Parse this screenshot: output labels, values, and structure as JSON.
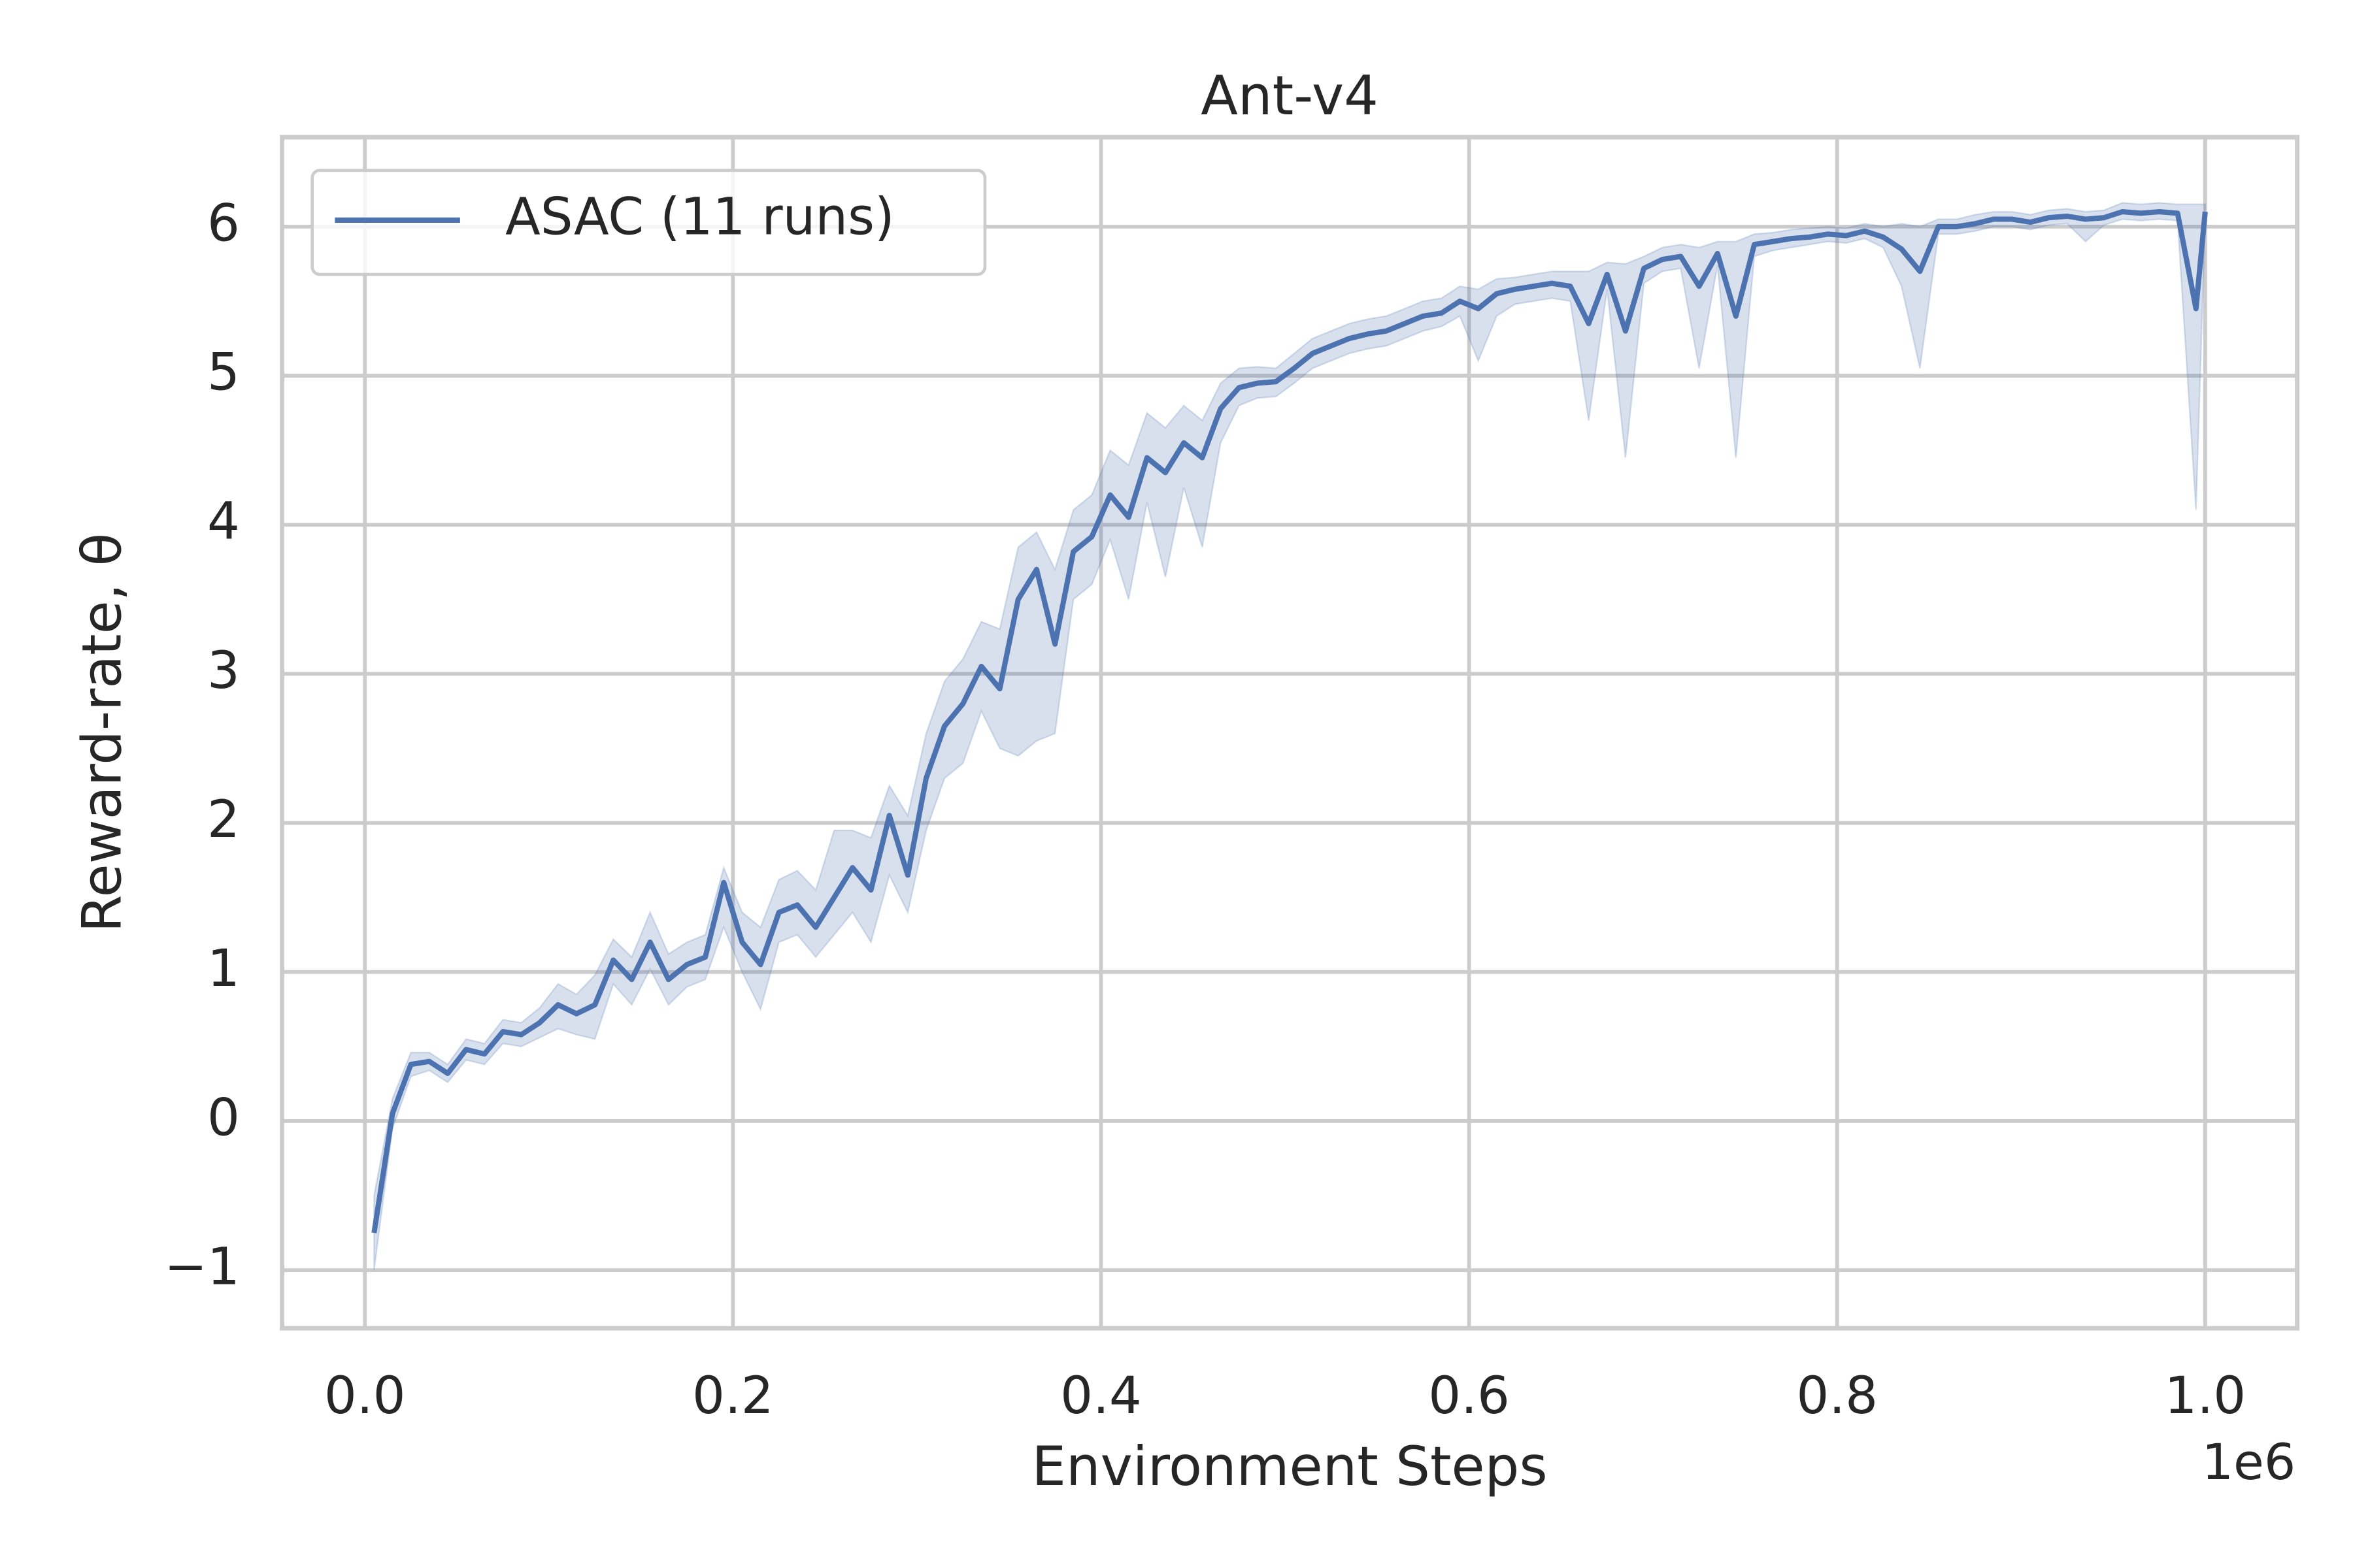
{
  "chart_data": {
    "type": "line",
    "title": "Ant-v4",
    "xlabel": "Environment Steps",
    "ylabel": "Reward-rate, θ",
    "x_offset_label": "1e6",
    "x": [
      0.005,
      0.015,
      0.025,
      0.035,
      0.045,
      0.055,
      0.065,
      0.075,
      0.085,
      0.095,
      0.105,
      0.115,
      0.125,
      0.135,
      0.145,
      0.155,
      0.165,
      0.175,
      0.185,
      0.195,
      0.205,
      0.215,
      0.225,
      0.235,
      0.245,
      0.255,
      0.265,
      0.275,
      0.285,
      0.295,
      0.305,
      0.315,
      0.325,
      0.335,
      0.345,
      0.355,
      0.365,
      0.375,
      0.385,
      0.395,
      0.405,
      0.415,
      0.425,
      0.435,
      0.445,
      0.455,
      0.465,
      0.475,
      0.485,
      0.495,
      0.505,
      0.515,
      0.525,
      0.535,
      0.545,
      0.555,
      0.565,
      0.575,
      0.585,
      0.595,
      0.605,
      0.615,
      0.625,
      0.635,
      0.645,
      0.655,
      0.665,
      0.675,
      0.685,
      0.695,
      0.705,
      0.715,
      0.725,
      0.735,
      0.745,
      0.755,
      0.765,
      0.775,
      0.785,
      0.795,
      0.805,
      0.815,
      0.825,
      0.835,
      0.845,
      0.855,
      0.865,
      0.875,
      0.885,
      0.895,
      0.905,
      0.915,
      0.925,
      0.935,
      0.945,
      0.955,
      0.965,
      0.975,
      0.985,
      0.995,
      1.0
    ],
    "series": [
      {
        "name": "ASAC (11 runs)",
        "color": "#4c72b0",
        "values": [
          -0.75,
          0.05,
          0.38,
          0.4,
          0.32,
          0.48,
          0.45,
          0.6,
          0.58,
          0.66,
          0.78,
          0.72,
          0.78,
          1.08,
          0.95,
          1.2,
          0.95,
          1.05,
          1.1,
          1.6,
          1.2,
          1.05,
          1.4,
          1.45,
          1.3,
          1.5,
          1.7,
          1.55,
          2.05,
          1.65,
          2.3,
          2.65,
          2.8,
          3.05,
          2.9,
          3.5,
          3.7,
          3.2,
          3.82,
          3.92,
          4.2,
          4.05,
          4.45,
          4.35,
          4.55,
          4.45,
          4.78,
          4.92,
          4.95,
          4.96,
          5.05,
          5.15,
          5.2,
          5.25,
          5.28,
          5.3,
          5.35,
          5.4,
          5.42,
          5.5,
          5.45,
          5.55,
          5.58,
          5.6,
          5.62,
          5.6,
          5.35,
          5.68,
          5.3,
          5.72,
          5.78,
          5.8,
          5.6,
          5.82,
          5.4,
          5.88,
          5.9,
          5.92,
          5.93,
          5.95,
          5.94,
          5.97,
          5.93,
          5.85,
          5.7,
          6.0,
          6.0,
          6.02,
          6.05,
          6.05,
          6.03,
          6.06,
          6.07,
          6.05,
          6.06,
          6.1,
          6.09,
          6.1,
          6.09,
          5.45,
          6.1
        ],
        "lower": [
          -1.0,
          -0.05,
          0.3,
          0.34,
          0.26,
          0.41,
          0.38,
          0.52,
          0.5,
          0.56,
          0.62,
          0.58,
          0.55,
          0.92,
          0.78,
          1.02,
          0.78,
          0.9,
          0.95,
          1.3,
          1.0,
          0.75,
          1.2,
          1.25,
          1.1,
          1.25,
          1.4,
          1.2,
          1.65,
          1.4,
          1.95,
          2.3,
          2.4,
          2.75,
          2.5,
          2.45,
          2.55,
          2.6,
          3.5,
          3.6,
          3.9,
          3.5,
          4.15,
          3.65,
          4.25,
          3.85,
          4.55,
          4.8,
          4.85,
          4.86,
          4.95,
          5.05,
          5.1,
          5.15,
          5.18,
          5.2,
          5.25,
          5.3,
          5.33,
          5.4,
          5.1,
          5.4,
          5.48,
          5.5,
          5.52,
          5.5,
          4.7,
          5.58,
          4.45,
          5.62,
          5.7,
          5.72,
          5.05,
          5.74,
          4.45,
          5.8,
          5.84,
          5.86,
          5.88,
          5.9,
          5.89,
          5.92,
          5.86,
          5.6,
          5.05,
          5.95,
          5.95,
          5.97,
          6.0,
          6.0,
          5.98,
          6.01,
          6.02,
          5.9,
          6.01,
          6.05,
          6.04,
          6.05,
          6.04,
          4.1,
          6.05
        ],
        "upper": [
          -0.5,
          0.15,
          0.46,
          0.46,
          0.38,
          0.55,
          0.52,
          0.68,
          0.66,
          0.76,
          0.92,
          0.85,
          0.98,
          1.22,
          1.1,
          1.4,
          1.12,
          1.2,
          1.25,
          1.7,
          1.4,
          1.3,
          1.62,
          1.68,
          1.55,
          1.95,
          1.95,
          1.9,
          2.25,
          2.05,
          2.6,
          2.95,
          3.1,
          3.35,
          3.3,
          3.85,
          3.95,
          3.7,
          4.1,
          4.2,
          4.5,
          4.4,
          4.75,
          4.65,
          4.8,
          4.7,
          4.95,
          5.05,
          5.06,
          5.05,
          5.15,
          5.25,
          5.3,
          5.35,
          5.38,
          5.4,
          5.45,
          5.5,
          5.52,
          5.6,
          5.58,
          5.65,
          5.66,
          5.68,
          5.7,
          5.7,
          5.7,
          5.76,
          5.75,
          5.8,
          5.86,
          5.88,
          5.86,
          5.9,
          5.9,
          5.95,
          5.96,
          5.98,
          5.99,
          6.0,
          5.99,
          6.02,
          6.0,
          6.02,
          6.0,
          6.05,
          6.05,
          6.08,
          6.1,
          6.1,
          6.08,
          6.11,
          6.12,
          6.1,
          6.11,
          6.16,
          6.15,
          6.16,
          6.15,
          6.15,
          6.15
        ]
      }
    ],
    "xlim": [
      -0.045,
      1.05
    ],
    "ylim": [
      -1.39,
      6.6
    ],
    "xticks": [
      {
        "value": 0,
        "label": "0.0"
      },
      0.2,
      0.4,
      0.6,
      0.8,
      {
        "value": 1,
        "label": "1.0"
      }
    ],
    "yticks": [
      {
        "value": -1,
        "label": "−1"
      },
      0,
      1,
      2,
      3,
      4,
      5,
      6
    ],
    "grid": true,
    "legend": "upper left"
  }
}
